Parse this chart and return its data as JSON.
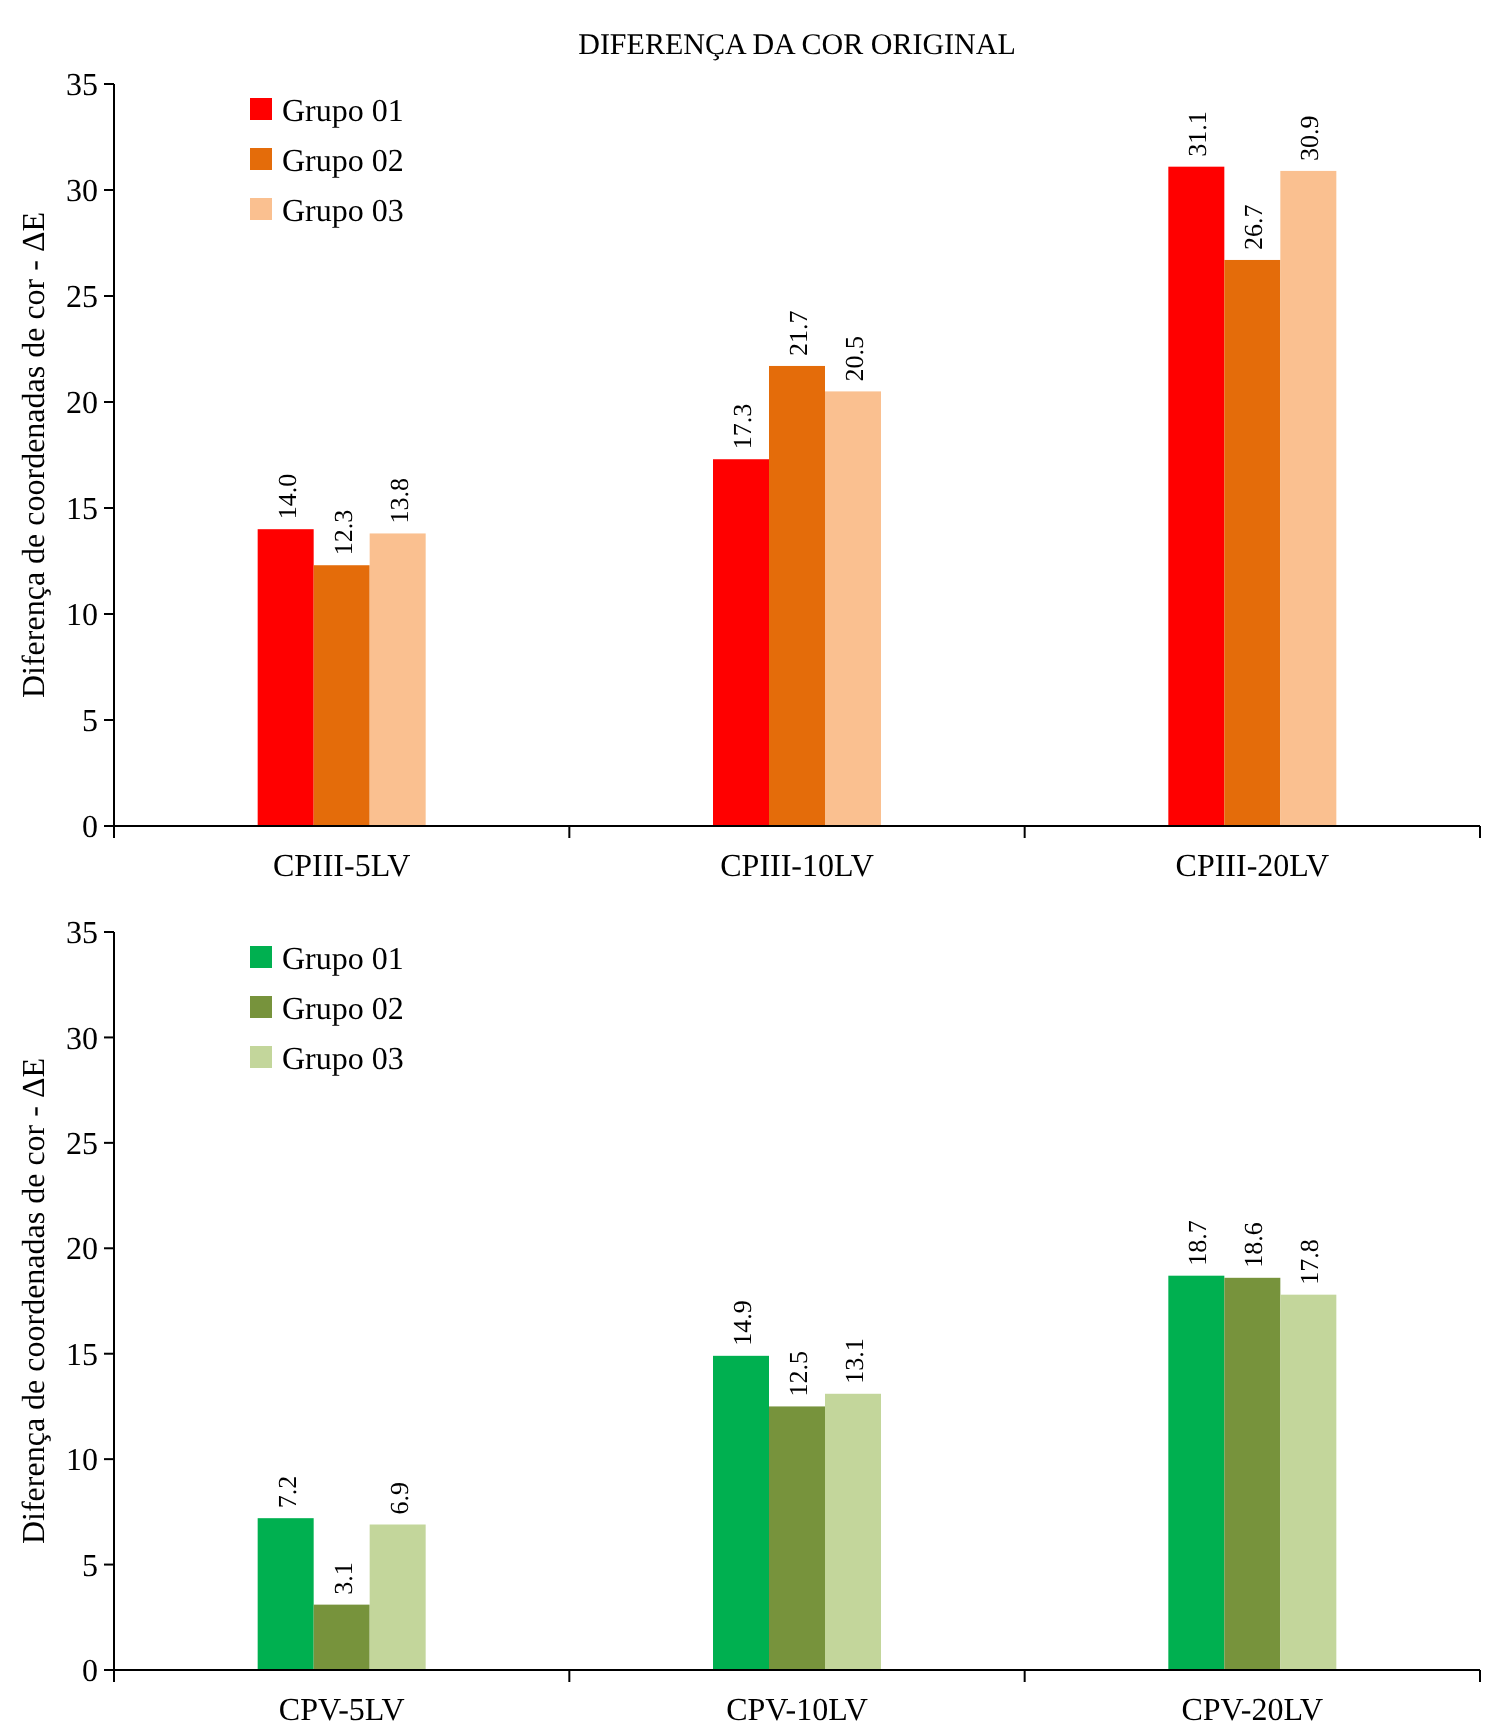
{
  "chart_data": [
    {
      "type": "bar",
      "title": "DIFERENÇA DA COR ORIGINAL",
      "ylabel": "Diferença de coordenadas de cor - ΔE",
      "categories": [
        "CPIII-5LV",
        "CPIII-10LV",
        "CPIII-20LV"
      ],
      "series": [
        {
          "name": "Grupo 01",
          "color": "#ff0000",
          "values": [
            14.0,
            17.3,
            31.1
          ],
          "value_labels": [
            "14.0",
            "17.3",
            "31.1"
          ]
        },
        {
          "name": "Grupo 02",
          "color": "#e46c0a",
          "values": [
            12.3,
            21.7,
            26.7
          ],
          "value_labels": [
            "12.3",
            "21.7",
            "26.7"
          ]
        },
        {
          "name": "Grupo 03",
          "color": "#fac090",
          "values": [
            13.8,
            20.5,
            30.9
          ],
          "value_labels": [
            "13.8",
            "20.5",
            "30.9"
          ]
        }
      ],
      "ylim": [
        0,
        35
      ],
      "yticks": [
        0,
        5,
        10,
        15,
        20,
        25,
        30,
        35
      ],
      "grid": false,
      "legend": "top left"
    },
    {
      "type": "bar",
      "ylabel": "Diferença de coordenadas de cor - ΔE",
      "categories": [
        "CPV-5LV",
        "CPV-10LV",
        "CPV-20LV"
      ],
      "series": [
        {
          "name": "Grupo 01",
          "color": "#00b050",
          "values": [
            7.2,
            14.9,
            18.7
          ],
          "value_labels": [
            "7.2",
            "14.9",
            "18.7"
          ]
        },
        {
          "name": "Grupo 02",
          "color": "#77933c",
          "values": [
            3.1,
            12.5,
            18.6
          ],
          "value_labels": [
            "3.1",
            "12.5",
            "18.6"
          ]
        },
        {
          "name": "Grupo 03",
          "color": "#c3d69b",
          "values": [
            6.9,
            13.1,
            17.8
          ],
          "value_labels": [
            "6.9",
            "13.1",
            "17.8"
          ]
        }
      ],
      "ylim": [
        0,
        35
      ],
      "yticks": [
        0,
        5,
        10,
        15,
        20,
        25,
        30,
        35
      ],
      "grid": false,
      "legend": "top left"
    }
  ]
}
